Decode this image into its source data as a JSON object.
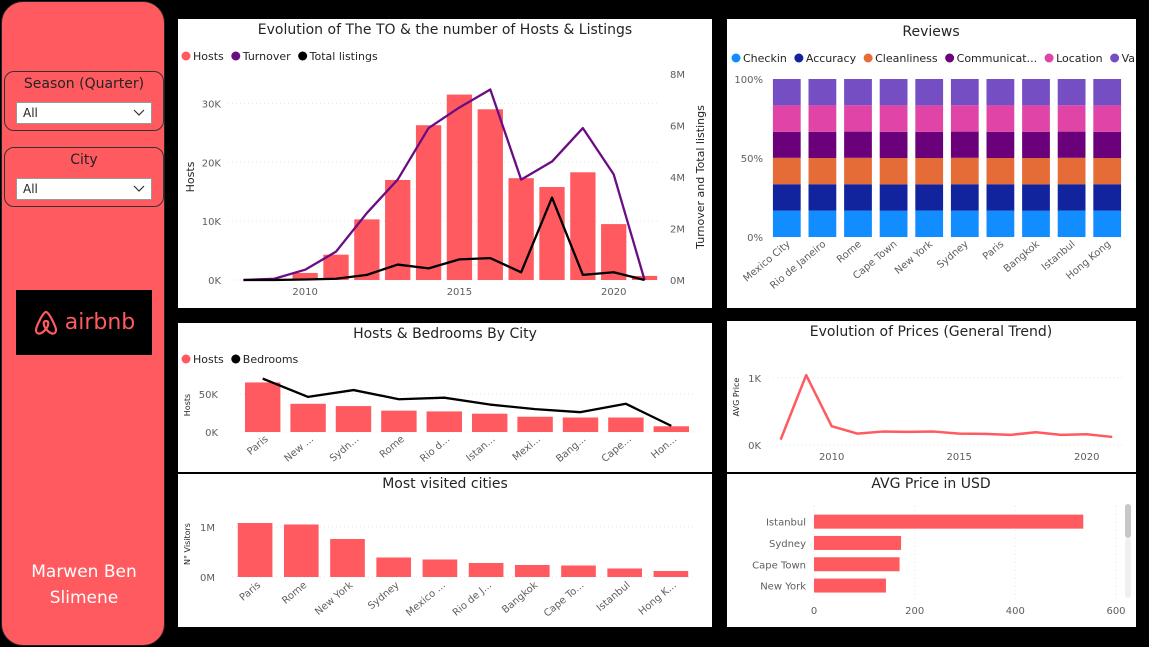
{
  "sidebar": {
    "season": {
      "title": "Season (Quarter)",
      "value": "All"
    },
    "city": {
      "title": "City",
      "value": "All"
    },
    "logo_text": "airbnb",
    "author_line1": "Marwen Ben",
    "author_line2": "Slimene"
  },
  "colors": {
    "accent": "#ff5a5f",
    "purple": "#6a0d83",
    "black": "#000000"
  },
  "chart_data": [
    {
      "id": "evolution",
      "type": "bar+line",
      "title": "Evolution of The TO & the number of Hosts & Listings",
      "legend": [
        "Hosts",
        "Turnover",
        "Total listings"
      ],
      "ylabel": "Hosts",
      "y2label": "Turnover and Total listings",
      "x_ticks": [
        "2010",
        "2015",
        "2020"
      ],
      "y_ticks": [
        "0K",
        "10K",
        "20K",
        "30K"
      ],
      "y2_ticks": [
        "0M",
        "2M",
        "4M",
        "6M",
        "8M"
      ],
      "xlim": [
        2007.5,
        2021.5
      ],
      "ylim": [
        0,
        35000
      ],
      "y2lim": [
        0,
        8000000
      ],
      "x": [
        2008,
        2009,
        2010,
        2011,
        2012,
        2013,
        2014,
        2015,
        2016,
        2017,
        2018,
        2019,
        2020,
        2021
      ],
      "hosts": [
        0,
        200,
        1200,
        4300,
        10300,
        17000,
        26300,
        31500,
        29000,
        17300,
        15800,
        18300,
        9500,
        700
      ],
      "turnover": [
        0,
        50000,
        400000,
        1100000,
        2600000,
        3900000,
        5900000,
        6700000,
        7400000,
        3900000,
        4600000,
        5900000,
        4100000,
        0
      ],
      "listings": [
        0,
        0,
        20000,
        50000,
        200000,
        600000,
        450000,
        800000,
        850000,
        300000,
        3200000,
        200000,
        300000,
        0
      ]
    },
    {
      "id": "reviews",
      "type": "stacked-bar-100",
      "title": "Reviews",
      "legend": [
        "Checkin",
        "Accuracy",
        "Cleanliness",
        "Communicat...",
        "Location",
        "Value"
      ],
      "series_colors": [
        "#118dff",
        "#12239e",
        "#e66c37",
        "#6b007b",
        "#e044a7",
        "#744ec2"
      ],
      "categories": [
        "Mexico City",
        "Rio de Janeiro",
        "Rome",
        "Cape Town",
        "New York",
        "Sydney",
        "Paris",
        "Bangkok",
        "Istanbul",
        "Hong Kong"
      ],
      "y_ticks": [
        "0%",
        "50%",
        "100%"
      ],
      "shares": [
        [
          16.7,
          16.7,
          16.7,
          16.5,
          16.7,
          16.7
        ],
        [
          16.7,
          16.7,
          16.6,
          16.6,
          16.7,
          16.7
        ],
        [
          16.7,
          16.7,
          16.7,
          16.6,
          16.7,
          16.6
        ],
        [
          16.6,
          16.7,
          16.7,
          16.6,
          16.7,
          16.7
        ],
        [
          16.7,
          16.6,
          16.7,
          16.6,
          16.7,
          16.7
        ],
        [
          16.7,
          16.7,
          16.7,
          16.6,
          16.7,
          16.6
        ],
        [
          16.7,
          16.7,
          16.6,
          16.6,
          16.7,
          16.7
        ],
        [
          16.6,
          16.7,
          16.7,
          16.6,
          16.7,
          16.7
        ],
        [
          16.7,
          16.7,
          16.7,
          16.6,
          16.7,
          16.6
        ],
        [
          16.7,
          16.7,
          16.6,
          16.6,
          16.7,
          16.7
        ]
      ]
    },
    {
      "id": "hosts-bedrooms",
      "type": "bar+line",
      "title": "Hosts & Bedrooms By City",
      "legend": [
        "Hosts",
        "Bedrooms"
      ],
      "ylabel": "Hosts",
      "y_ticks": [
        "0K",
        "50K"
      ],
      "ylim": [
        0,
        80000
      ],
      "categories": [
        "Paris",
        "New ...",
        "Sydn...",
        "Rome",
        "Rio d...",
        "Istan...",
        "Mexi...",
        "Bang...",
        "Cape...",
        "Hon..."
      ],
      "hosts": [
        65000,
        37000,
        34000,
        28000,
        27000,
        24000,
        20000,
        19000,
        19000,
        7500
      ],
      "bedrooms": [
        70000,
        46000,
        55000,
        43000,
        45000,
        36000,
        30000,
        26000,
        37000,
        8000
      ]
    },
    {
      "id": "prices",
      "type": "line",
      "title": "Evolution of Prices (General Trend)",
      "ylabel": "AVG Price",
      "x_ticks": [
        "2010",
        "2015",
        "2020"
      ],
      "y_ticks": [
        "0K",
        "1K"
      ],
      "xlim": [
        2007.7,
        2021.5
      ],
      "ylim": [
        0,
        1250
      ],
      "x": [
        2008,
        2009,
        2010,
        2011,
        2012,
        2013,
        2014,
        2015,
        2016,
        2017,
        2018,
        2019,
        2020,
        2021
      ],
      "values": [
        80,
        1040,
        280,
        170,
        200,
        195,
        200,
        170,
        165,
        150,
        190,
        150,
        160,
        120
      ]
    },
    {
      "id": "visited",
      "type": "bar",
      "title": "Most visited cities",
      "ylabel": "N° Visitors",
      "y_ticks": [
        "0M",
        "1M"
      ],
      "ylim": [
        0,
        1300000
      ],
      "categories": [
        "Paris",
        "Rome",
        "New York",
        "Sydney",
        "Mexico ...",
        "Rio de J...",
        "Bangkok",
        "Cape To...",
        "Istanbul",
        "Hong K..."
      ],
      "values": [
        1080000,
        1050000,
        760000,
        390000,
        350000,
        280000,
        240000,
        230000,
        170000,
        120000
      ]
    },
    {
      "id": "avg-price",
      "type": "bar-horizontal",
      "title": "AVG Price in USD",
      "categories": [
        "Istanbul",
        "Sydney",
        "Cape Town",
        "New York"
      ],
      "values": [
        535,
        173,
        170,
        143
      ],
      "x_ticks": [
        "0",
        "200",
        "400",
        "600"
      ],
      "xlim": [
        0,
        600
      ]
    }
  ]
}
